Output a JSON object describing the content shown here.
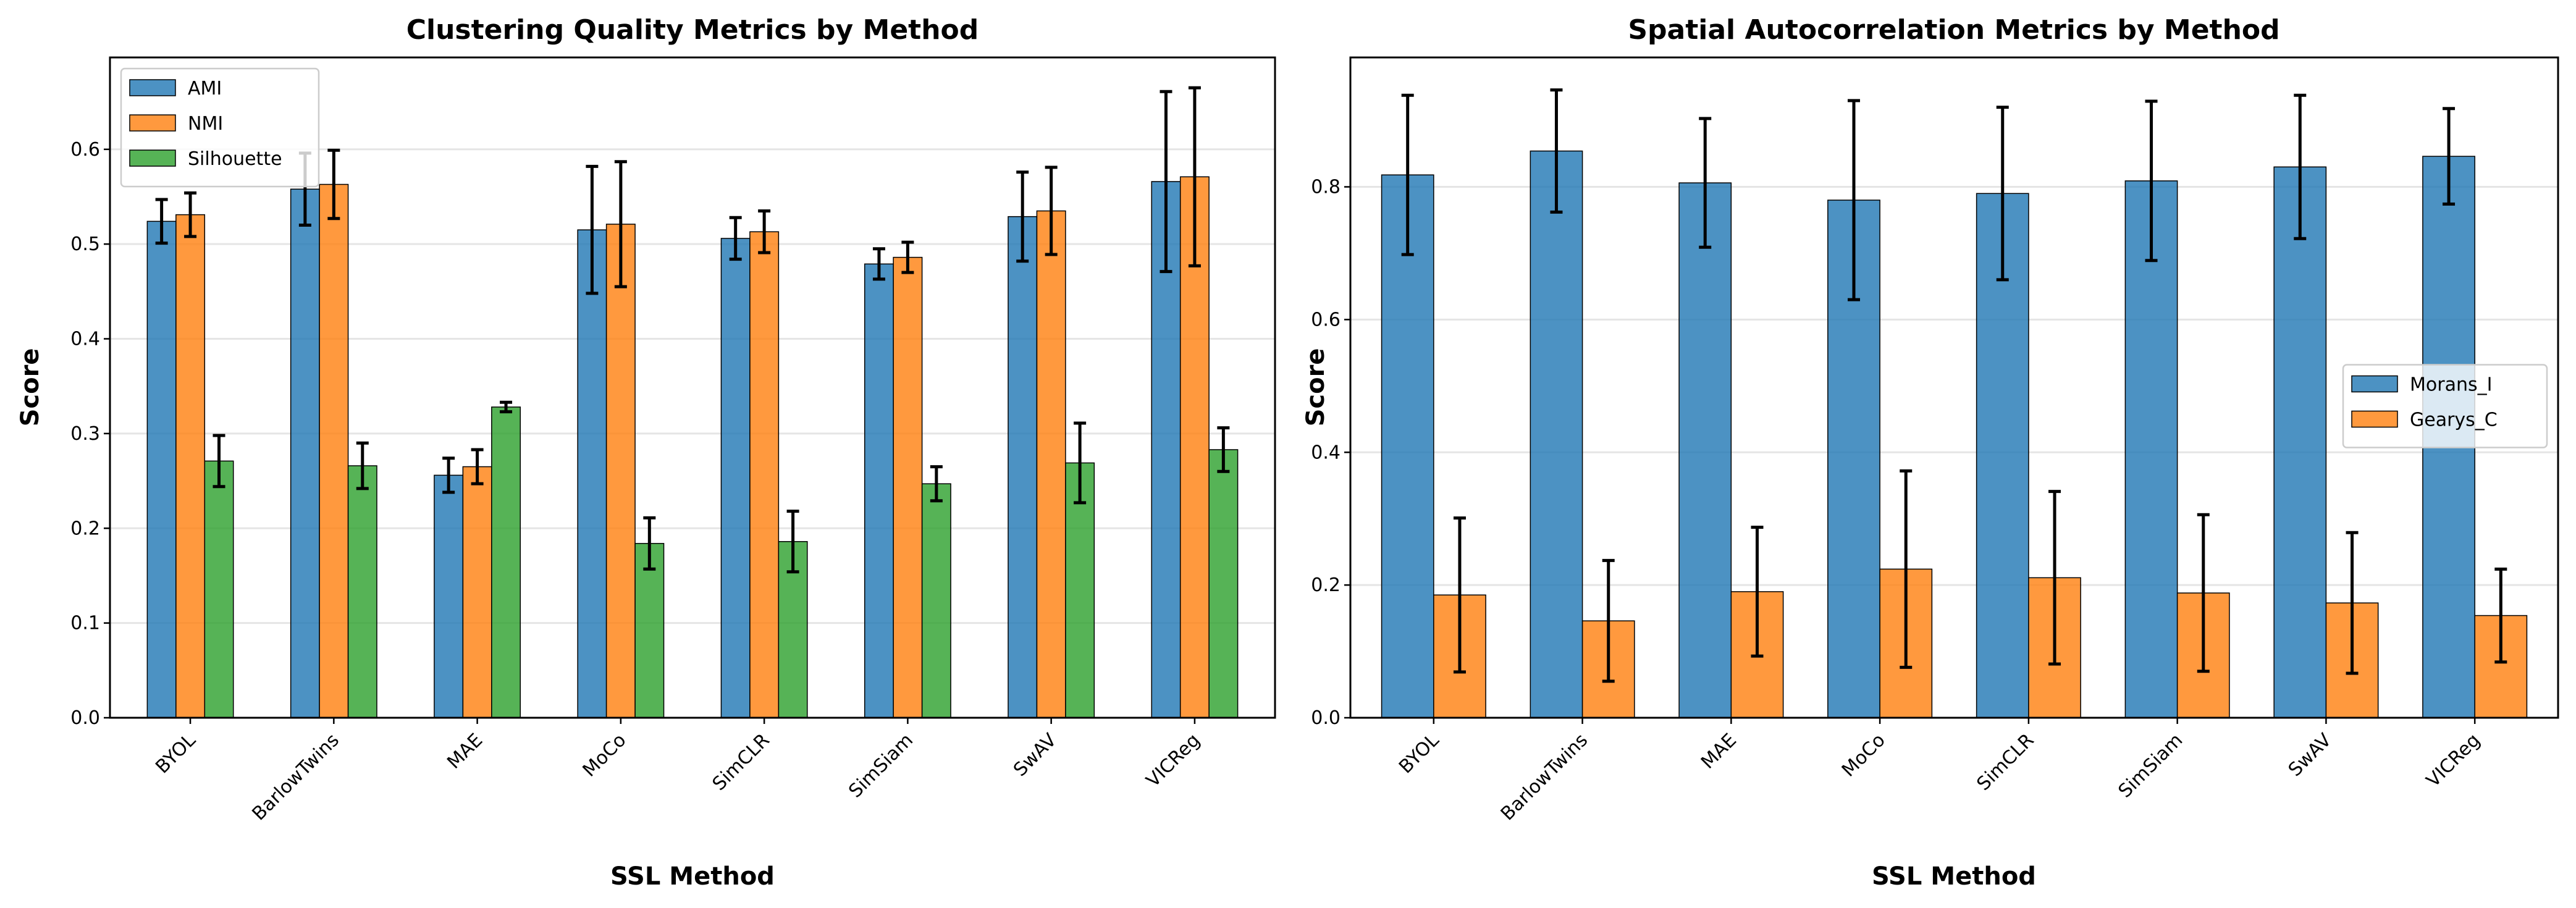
{
  "chart_data": [
    {
      "type": "bar",
      "title": "Clustering Quality Metrics by Method",
      "xlabel": "SSL Method",
      "ylabel": "Score",
      "ylim": [
        0,
        0.697
      ],
      "yticks": [
        0.0,
        0.1,
        0.2,
        0.3,
        0.4,
        0.5,
        0.6
      ],
      "grid": true,
      "legend": "top-left",
      "categories": [
        "BYOL",
        "BarlowTwins",
        "MAE",
        "MoCo",
        "SimCLR",
        "SimSiam",
        "SwAV",
        "VICReg"
      ],
      "series": [
        {
          "name": "AMI",
          "color": "#1f77b4",
          "values": [
            0.524,
            0.558,
            0.256,
            0.515,
            0.506,
            0.479,
            0.529,
            0.566
          ],
          "errors": [
            0.023,
            0.038,
            0.018,
            0.067,
            0.022,
            0.016,
            0.047,
            0.095
          ]
        },
        {
          "name": "NMI",
          "color": "#ff7f0e",
          "values": [
            0.531,
            0.563,
            0.265,
            0.521,
            0.513,
            0.486,
            0.535,
            0.571
          ],
          "errors": [
            0.023,
            0.036,
            0.018,
            0.066,
            0.022,
            0.016,
            0.046,
            0.094
          ]
        },
        {
          "name": "Silhouette",
          "color": "#2ca02c",
          "values": [
            0.271,
            0.266,
            0.328,
            0.184,
            0.186,
            0.247,
            0.269,
            0.283
          ],
          "errors": [
            0.027,
            0.024,
            0.005,
            0.027,
            0.032,
            0.018,
            0.042,
            0.023
          ]
        }
      ]
    },
    {
      "type": "bar",
      "title": "Spatial Autocorrelation Metrics by Method",
      "xlabel": "SSL Method",
      "ylabel": "Score",
      "ylim": [
        0,
        0.995
      ],
      "yticks": [
        0.0,
        0.2,
        0.4,
        0.6,
        0.8
      ],
      "grid": true,
      "legend": "center-right",
      "categories": [
        "BYOL",
        "BarlowTwins",
        "MAE",
        "MoCo",
        "SimCLR",
        "SimSiam",
        "SwAV",
        "VICReg"
      ],
      "series": [
        {
          "name": "Morans_I",
          "color": "#1f77b4",
          "values": [
            0.818,
            0.854,
            0.806,
            0.78,
            0.79,
            0.809,
            0.83,
            0.846
          ],
          "errors": [
            0.12,
            0.092,
            0.097,
            0.15,
            0.13,
            0.12,
            0.108,
            0.072
          ]
        },
        {
          "name": "Gearys_C",
          "color": "#ff7f0e",
          "values": [
            0.185,
            0.146,
            0.19,
            0.224,
            0.211,
            0.188,
            0.173,
            0.154
          ],
          "errors": [
            0.116,
            0.091,
            0.097,
            0.148,
            0.13,
            0.118,
            0.106,
            0.07
          ]
        }
      ]
    }
  ]
}
